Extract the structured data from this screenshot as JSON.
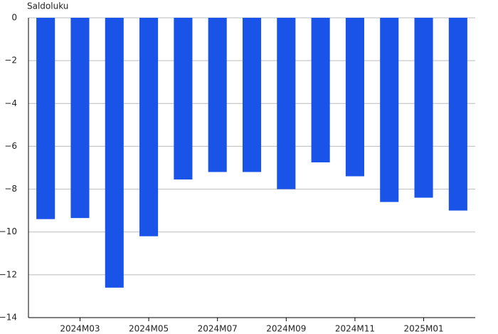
{
  "chart_data": {
    "type": "bar",
    "y_label": "Saldoluku",
    "categories": [
      null,
      "2024M03",
      null,
      "2024M05",
      null,
      "2024M07",
      null,
      "2024M09",
      null,
      "2024M11",
      null,
      "2025M01",
      null
    ],
    "values": [
      -9.4,
      -9.35,
      -12.6,
      -10.2,
      -7.55,
      -7.2,
      -7.2,
      -8.0,
      -6.75,
      -7.4,
      -8.6,
      -8.4,
      -9.0
    ],
    "color": "#1a53e8",
    "ylim": [
      -14,
      0
    ],
    "yticks": [
      0,
      {
        "value": -2,
        "label": "−2"
      },
      {
        "value": -4,
        "label": "−4"
      },
      {
        "value": -6,
        "label": "−6"
      },
      {
        "value": -8,
        "label": "−8"
      },
      {
        "value": -10,
        "label": "−10"
      },
      {
        "value": -12,
        "label": "−12"
      },
      {
        "value": -14,
        "label": "−14"
      }
    ],
    "grid": true
  }
}
